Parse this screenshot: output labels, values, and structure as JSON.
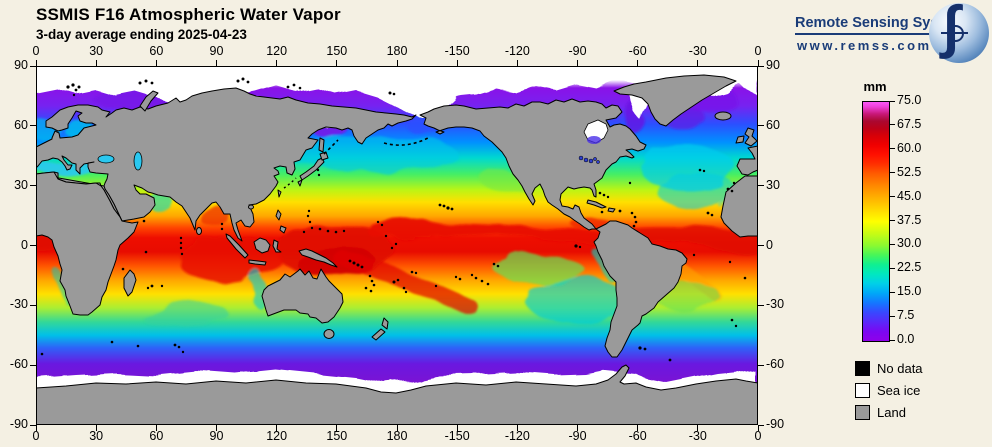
{
  "header": {
    "title": "SSMIS F16 Atmospheric Water Vapor",
    "subtitle": "3-day average ending 2025-04-23"
  },
  "logo": {
    "name": "Remote Sensing Systems",
    "url": "www.remss.com"
  },
  "map": {
    "lon_labels": [
      "0",
      "30",
      "60",
      "90",
      "120",
      "150",
      "180",
      "-150",
      "-120",
      "-90",
      "-60",
      "-30",
      "0"
    ],
    "lat_labels": [
      "90",
      "60",
      "30",
      "0",
      "-30",
      "-60",
      "-90"
    ]
  },
  "colorbar": {
    "unit": "mm",
    "tick_labels": [
      "75.0",
      "67.5",
      "60.0",
      "52.5",
      "45.0",
      "37.5",
      "30.0",
      "22.5",
      "15.0",
      "7.5",
      "0.0"
    ],
    "range": [
      0.0,
      75.0
    ],
    "gradient_stops": [
      [
        0,
        "#9000EA"
      ],
      [
        4,
        "#7A08F2"
      ],
      [
        8,
        "#5A28FA"
      ],
      [
        12,
        "#3848FF"
      ],
      [
        16,
        "#1478FF"
      ],
      [
        20,
        "#00A8F8"
      ],
      [
        24,
        "#00D0E8"
      ],
      [
        28,
        "#00E8C0"
      ],
      [
        32,
        "#10F090"
      ],
      [
        36,
        "#48F658"
      ],
      [
        40,
        "#8CFA30"
      ],
      [
        45,
        "#C8FC14"
      ],
      [
        50,
        "#FFFF00"
      ],
      [
        55,
        "#FFD800"
      ],
      [
        60,
        "#FFB000"
      ],
      [
        65,
        "#FF8800"
      ],
      [
        70,
        "#FF5C00"
      ],
      [
        74,
        "#FF3000"
      ],
      [
        78,
        "#FF1000"
      ],
      [
        82,
        "#F00000"
      ],
      [
        86,
        "#D60008"
      ],
      [
        89,
        "#BC0018"
      ],
      [
        92,
        "#AA0830"
      ],
      [
        95,
        "#C81878"
      ],
      [
        98,
        "#EE40D8"
      ],
      [
        100,
        "#FA58F8"
      ]
    ]
  },
  "legend": [
    {
      "label": "No data",
      "color": "#000000"
    },
    {
      "label": "Sea ice",
      "color": "#FFFFFF"
    },
    {
      "label": "Land",
      "color": "#9A9A9A"
    }
  ],
  "colors": {
    "background": "#F4F0E3",
    "land": "#9A9A9A",
    "coast": "#000000",
    "logo_navy": "#1A3C78"
  }
}
